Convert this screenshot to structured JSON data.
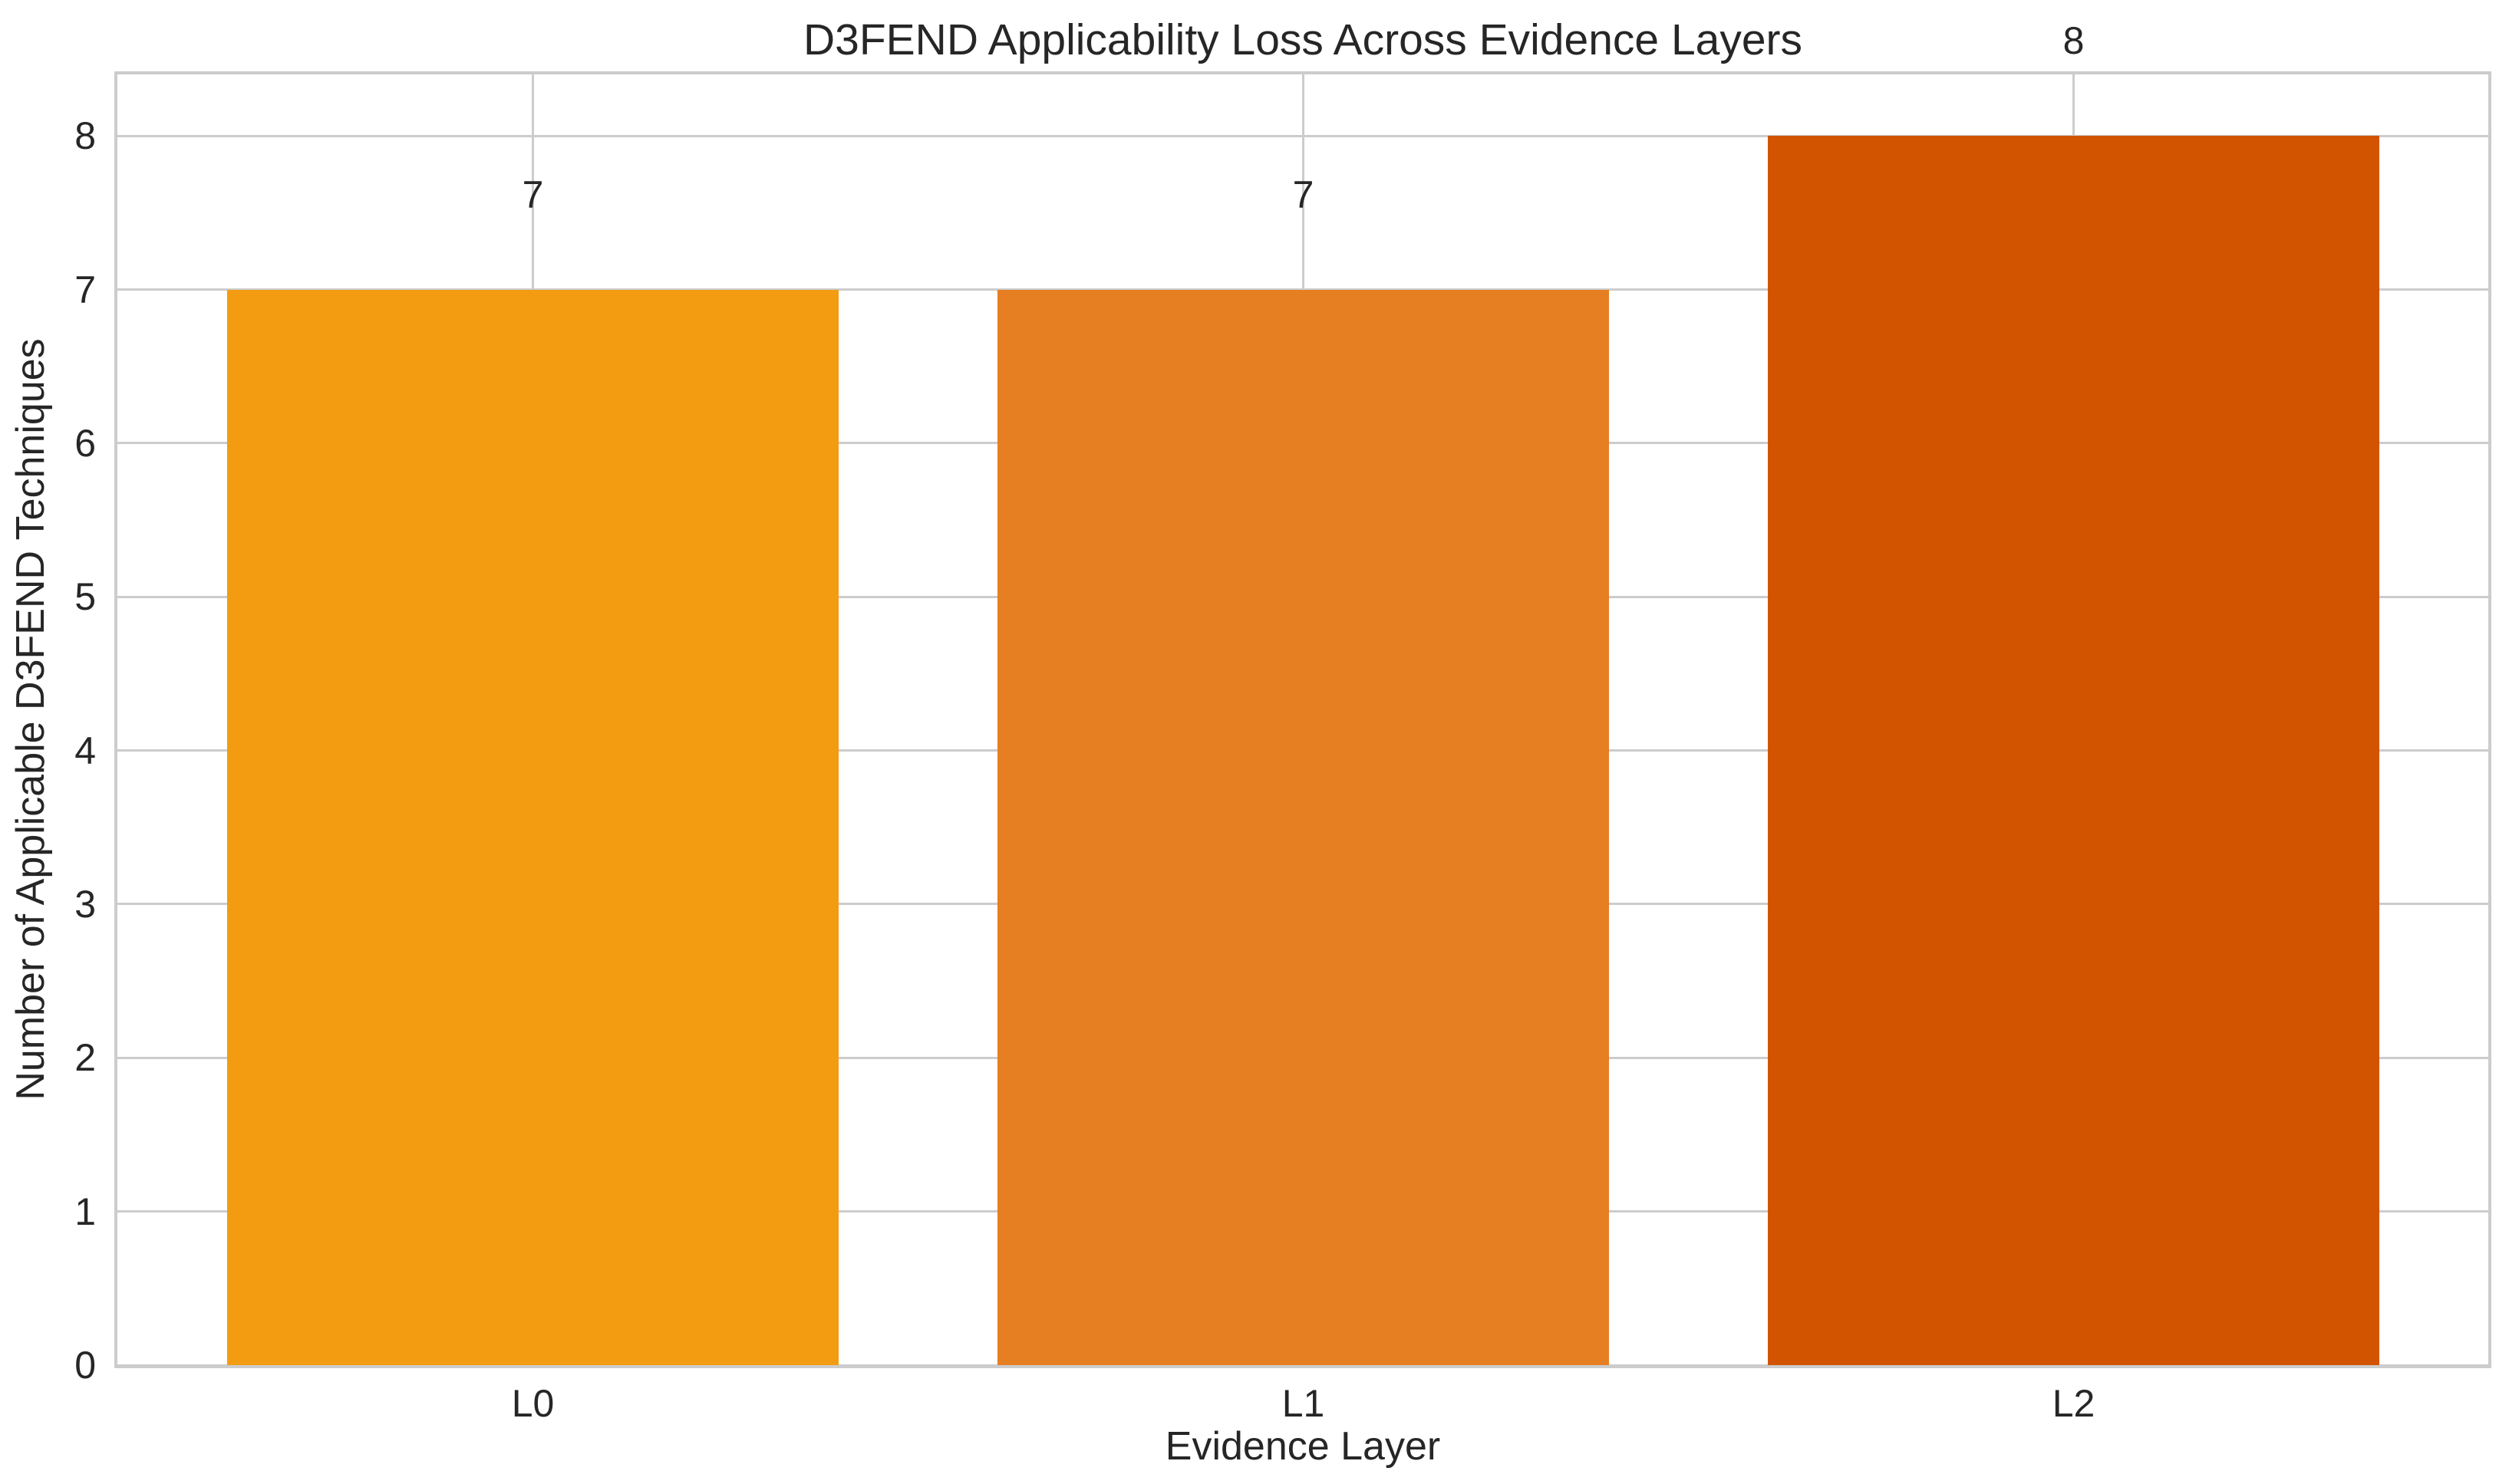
{
  "chart_data": {
    "type": "bar",
    "title": "D3FEND Applicability Loss Across Evidence Layers",
    "xlabel": "Evidence Layer",
    "ylabel": "Number of Applicable D3FEND Techniques",
    "categories": [
      "L0",
      "L1",
      "L2"
    ],
    "values": [
      7,
      7,
      8
    ],
    "bar_labels": [
      "7",
      "7",
      "8"
    ],
    "bar_colors": [
      "#F39C12",
      "#E67E22",
      "#D35400"
    ],
    "ylim": [
      0,
      8.4
    ],
    "yticks": [
      0,
      1,
      2,
      3,
      4,
      5,
      6,
      7,
      8
    ],
    "grid": "both",
    "grid_color": "#cccccc",
    "spine_color": "#cccccc",
    "text_color": "#262626",
    "background": "#ffffff",
    "legend": "none"
  }
}
